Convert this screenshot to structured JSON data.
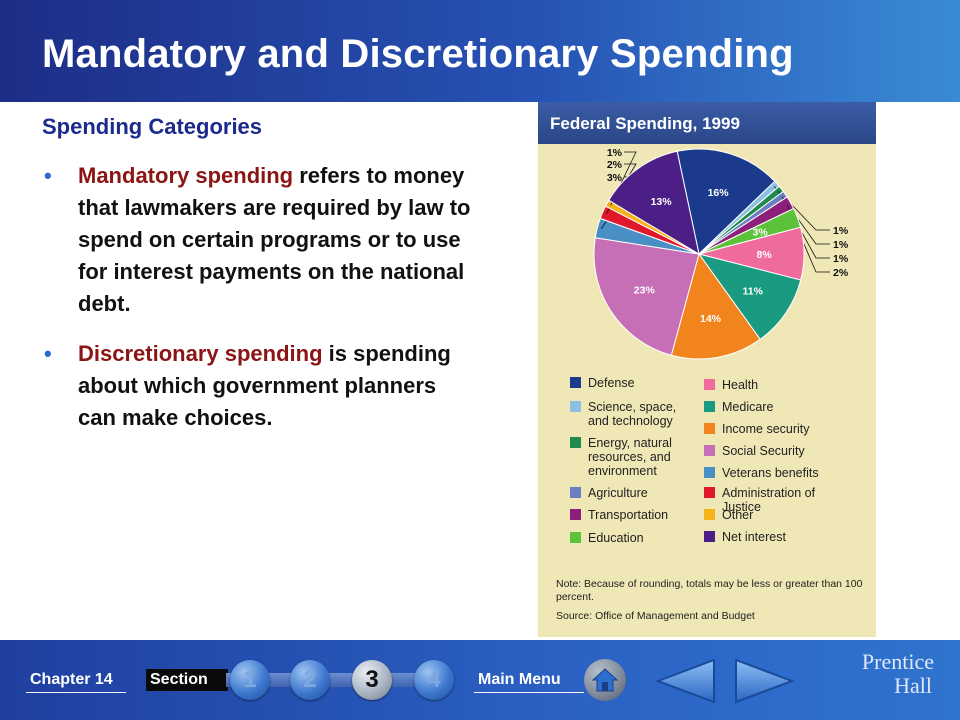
{
  "slide": {
    "title": "Mandatory and Discretionary Spending",
    "subheading": "Spending Categories",
    "bullets": [
      {
        "term": "Mandatory spending",
        "text": " refers to money that lawmakers are required by law to spend on certain programs or to use for interest payments on the national debt."
      },
      {
        "term": "Discretionary spending",
        "text": " is spending about which government planners can make choices."
      }
    ]
  },
  "chart_data": {
    "type": "pie",
    "title": "Federal Spending, 1999",
    "slices": [
      {
        "name": "Defense",
        "value": 16,
        "label": "16%",
        "color": "#1b3a8c"
      },
      {
        "name": "Science, space, and technology",
        "value": 1,
        "label": "1%",
        "color": "#8cc0e3"
      },
      {
        "name": "Energy, natural resources, and environment",
        "value": 1,
        "label": "1%",
        "color": "#1f8a4c"
      },
      {
        "name": "Agriculture",
        "value": 1,
        "label": "1%",
        "color": "#6a7fc0"
      },
      {
        "name": "Transportation",
        "value": 2,
        "label": "2%",
        "color": "#8c1f7a"
      },
      {
        "name": "Education",
        "value": 3,
        "label": "3%",
        "color": "#5cc23a"
      },
      {
        "name": "Health",
        "value": 8,
        "label": "8%",
        "color": "#ee6b9b"
      },
      {
        "name": "Medicare",
        "value": 11,
        "label": "11%",
        "color": "#1a9a80"
      },
      {
        "name": "Income security",
        "value": 14,
        "label": "14%",
        "color": "#f2841e"
      },
      {
        "name": "Social Security",
        "value": 23,
        "label": "23%",
        "color": "#c76fb6"
      },
      {
        "name": "Veterans benefits",
        "value": 3,
        "label": "3%",
        "color": "#4a8fc4"
      },
      {
        "name": "Administration of Justice",
        "value": 2,
        "label": "2%",
        "color": "#e0182c"
      },
      {
        "name": "Other",
        "value": 1,
        "label": "1%",
        "color": "#f5b21a"
      },
      {
        "name": "Net interest",
        "value": 13,
        "label": "13%",
        "color": "#4b1f86"
      }
    ],
    "legend": {
      "col1": [
        "Defense",
        "Science, space,\nand technology",
        "Energy, natural\nresources, and\nenvironment",
        "Agriculture",
        "Transportation",
        "Education"
      ],
      "col2": [
        "Health",
        "Medicare",
        "Income security",
        "Social Security",
        "Veterans benefits",
        "Administration of Justice",
        "Other",
        "Net interest"
      ]
    },
    "note": "Note:  Because of rounding, totals may be less or greater than 100 percent.",
    "source": "Source: Office of Management and Budget"
  },
  "footer": {
    "chapter": "Chapter 14",
    "section_label": "Section",
    "sections": [
      "1",
      "2",
      "3",
      "4"
    ],
    "active_section": "3",
    "main_menu": "Main Menu",
    "brand_line1": "Prentice",
    "brand_line2": "Hall"
  }
}
